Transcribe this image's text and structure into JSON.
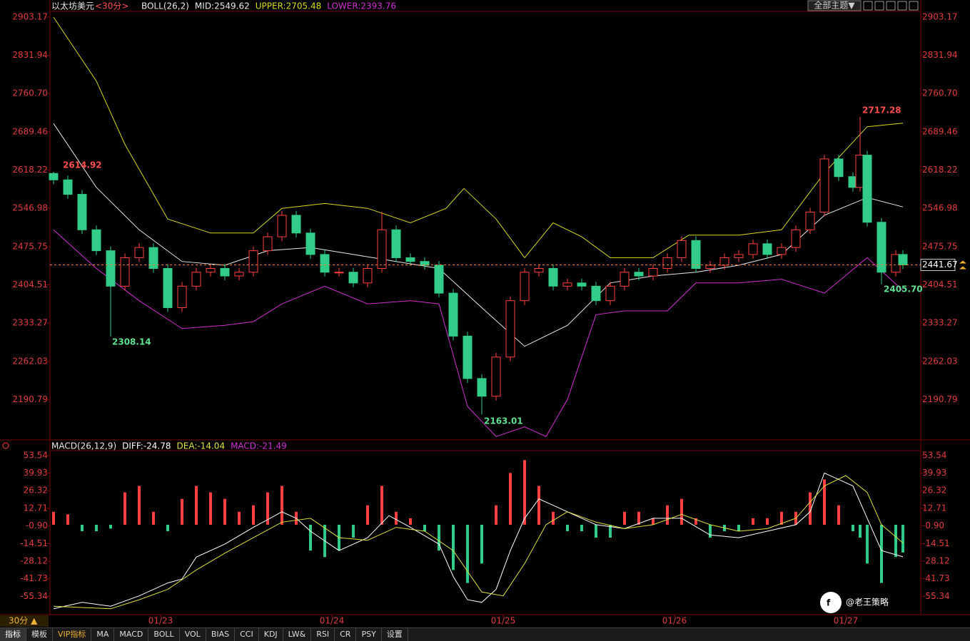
{
  "header": {
    "symbol": "以太坊美元",
    "period": "<30分>",
    "top_button": "全部主题▼"
  },
  "chart_data": [
    {
      "type": "candlestick",
      "title": "BOLL(26,2)",
      "x": [
        -15,
        -13,
        -11,
        -9,
        -7,
        -5,
        -3,
        -1,
        1,
        3,
        5,
        7,
        9,
        11,
        13,
        15,
        17,
        19,
        21,
        23,
        25,
        27,
        29,
        31,
        33,
        35,
        37,
        39,
        41,
        43,
        45,
        47,
        49,
        51,
        53,
        55,
        57,
        59,
        61,
        63,
        65,
        67,
        69,
        71,
        73,
        75,
        77,
        79,
        81,
        83,
        85,
        87,
        89,
        91,
        93,
        95,
        97,
        98,
        99,
        101,
        103,
        104
      ],
      "open": [
        2612,
        2600,
        2573,
        2507,
        2468,
        2402,
        2455,
        2474,
        2435,
        2362,
        2402,
        2428,
        2435,
        2421,
        2428,
        2468,
        2494,
        2534,
        2501,
        2461,
        2428,
        2428,
        2408,
        2435,
        2507,
        2455,
        2448,
        2441,
        2389,
        2309,
        2230,
        2197,
        2270,
        2375,
        2428,
        2435,
        2402,
        2408,
        2402,
        2375,
        2402,
        2428,
        2421,
        2435,
        2455,
        2487,
        2435,
        2441,
        2455,
        2461,
        2481,
        2461,
        2474,
        2507,
        2540,
        2639,
        2606,
        2586,
        2646,
        2521,
        2428,
        2461
      ],
      "high": [
        2614.92,
        2608,
        2581,
        2515,
        2476,
        2463,
        2482,
        2482,
        2443,
        2410,
        2436,
        2443,
        2443,
        2436,
        2476,
        2502,
        2542,
        2542,
        2509,
        2469,
        2436,
        2436,
        2443,
        2540,
        2515,
        2463,
        2456,
        2449,
        2397,
        2317,
        2238,
        2278,
        2383,
        2436,
        2443,
        2443,
        2416,
        2416,
        2410,
        2410,
        2436,
        2436,
        2443,
        2463,
        2495,
        2495,
        2449,
        2463,
        2469,
        2489,
        2489,
        2482,
        2515,
        2548,
        2647,
        2647,
        2614,
        2717.28,
        2654,
        2529,
        2469,
        2469
      ],
      "low": [
        2592,
        2565,
        2499,
        2460,
        2308.14,
        2394,
        2447,
        2427,
        2354,
        2354,
        2394,
        2420,
        2413,
        2413,
        2420,
        2460,
        2486,
        2493,
        2453,
        2420,
        2420,
        2400,
        2400,
        2427,
        2447,
        2440,
        2433,
        2381,
        2301,
        2222,
        2163.01,
        2189,
        2262,
        2367,
        2420,
        2394,
        2394,
        2394,
        2367,
        2367,
        2394,
        2413,
        2413,
        2427,
        2447,
        2427,
        2427,
        2433,
        2447,
        2453,
        2453,
        2453,
        2466,
        2499,
        2532,
        2598,
        2578,
        2578,
        2513,
        2405.7,
        2420,
        2434
      ],
      "close": [
        2600,
        2573,
        2507,
        2468,
        2402,
        2455,
        2474,
        2435,
        2362,
        2402,
        2428,
        2435,
        2421,
        2428,
        2468,
        2494,
        2534,
        2501,
        2461,
        2428,
        2428,
        2408,
        2435,
        2507,
        2455,
        2448,
        2441,
        2389,
        2309,
        2230,
        2197,
        2270,
        2375,
        2428,
        2435,
        2402,
        2408,
        2402,
        2375,
        2402,
        2428,
        2421,
        2435,
        2455,
        2487,
        2435,
        2441,
        2455,
        2461,
        2481,
        2461,
        2474,
        2507,
        2540,
        2639,
        2606,
        2586,
        2646,
        2521,
        2428,
        2461,
        2441.67
      ],
      "up_color": "#ff4040",
      "down_color": "#30cc88",
      "series": [
        {
          "name": "MID:2549.62",
          "color": "#e8e8e8",
          "x": [
            -15,
            -9,
            -3,
            3,
            9,
            15,
            21,
            27,
            33,
            39,
            45,
            51,
            57,
            63,
            69,
            75,
            81,
            87,
            93,
            99,
            104
          ],
          "values": [
            2705,
            2586,
            2507,
            2448,
            2441,
            2468,
            2474,
            2461,
            2448,
            2435,
            2362,
            2290,
            2329,
            2408,
            2421,
            2428,
            2441,
            2461,
            2534,
            2567,
            2549.62
          ]
        },
        {
          "name": "UPPER:2705.48",
          "color": "#d8d820",
          "x": [
            -15,
            -9,
            -5,
            1,
            7,
            13,
            17,
            23,
            29,
            35,
            40,
            42.5,
            47,
            51,
            55,
            59,
            63,
            69,
            74,
            81,
            87,
            93,
            99,
            104
          ],
          "values": [
            2903,
            2784,
            2666,
            2527,
            2501,
            2501,
            2547,
            2556,
            2547,
            2520,
            2547,
            2584,
            2527,
            2455,
            2520,
            2494,
            2455,
            2455,
            2497,
            2497,
            2507,
            2613,
            2699,
            2705.48
          ]
        },
        {
          "name": "LOWER:2393.76",
          "color": "#d030d0",
          "x": [
            -15,
            -9,
            -3,
            3,
            9,
            13,
            17,
            23,
            29,
            35,
            39,
            43,
            47,
            51,
            54,
            57,
            61,
            65,
            71,
            75,
            81,
            87,
            93,
            99,
            104
          ],
          "values": [
            2507,
            2435,
            2375,
            2323,
            2329,
            2336,
            2369,
            2402,
            2369,
            2375,
            2369,
            2178,
            2122,
            2140,
            2122,
            2191,
            2349,
            2356,
            2356,
            2408,
            2408,
            2415,
            2389,
            2455,
            2393.76
          ]
        }
      ],
      "annotations": [
        "2614.92",
        "2717.28",
        "2308.14",
        "2163.01",
        "2405.70"
      ],
      "xlim": [
        -15.5,
        106.5
      ],
      "ylim": [
        2118.3,
        2913.7
      ],
      "yticks": [
        2903.17,
        2831.94,
        {
          "value": 2760.7,
          "label": "2760.70"
        },
        2689.46,
        2618.22,
        2546.98,
        2475.75,
        2404.51,
        2333.27,
        2262.03,
        2190.79
      ]
    },
    {
      "type": "macd",
      "title": "MACD(26,12,9)",
      "value_name": "MACD:-21.49",
      "value_name_color": "#d030d0",
      "x": [
        -15,
        -13,
        -11,
        -9,
        -7,
        -5,
        -3,
        -1,
        1,
        3,
        5,
        7,
        9,
        11,
        13,
        15,
        17,
        19,
        21,
        23,
        25,
        27,
        29,
        31,
        33,
        35,
        37,
        39,
        41,
        43,
        45,
        47,
        49,
        51,
        53,
        55,
        57,
        59,
        61,
        63,
        65,
        67,
        69,
        71,
        73,
        75,
        77,
        79,
        81,
        83,
        85,
        87,
        89,
        91,
        93,
        95,
        97,
        98,
        99,
        101,
        103,
        104
      ],
      "values": [
        10,
        8,
        -5,
        -5,
        -3,
        25,
        30,
        10,
        -5,
        20,
        30,
        25,
        20,
        10,
        15,
        25,
        30,
        10,
        -20,
        -25,
        -20,
        -10,
        15,
        30,
        10,
        5,
        -5,
        -20,
        -35,
        -45,
        -30,
        15,
        40,
        50,
        30,
        10,
        -5,
        -5,
        -10,
        -10,
        10,
        10,
        5,
        15,
        20,
        5,
        -10,
        -5,
        -5,
        5,
        5,
        10,
        10,
        25,
        35,
        15,
        -5,
        -10,
        -30,
        -45,
        -25,
        -21.49
      ],
      "up_color": "#ff4040",
      "down_color": "#30cc88",
      "series": [
        {
          "name": "DIFF:-24.78",
          "color": "#ffffff",
          "x": [
            -15,
            -11,
            -7,
            -3,
            1,
            3,
            5,
            9,
            13,
            17,
            19,
            21,
            25,
            29,
            32,
            35,
            39,
            41,
            43,
            45,
            47,
            49,
            51,
            53,
            55,
            57,
            61,
            65,
            69,
            73,
            77,
            81,
            85,
            89,
            91,
            93,
            95,
            97,
            99,
            101,
            104
          ],
          "values": [
            -65,
            -60,
            -63,
            -55,
            -45,
            -42,
            -25,
            -15,
            -2,
            10,
            5,
            -5,
            -20,
            -10,
            7,
            -2,
            -15,
            -40,
            -58,
            -60,
            -50,
            -20,
            5,
            20,
            15,
            10,
            0,
            -3,
            5,
            5,
            -8,
            -10,
            -5,
            0,
            10,
            40,
            35,
            30,
            5,
            -20,
            -24.78
          ]
        },
        {
          "name": "DEA:-14.04",
          "color": "#e0e040",
          "x": [
            -15,
            -7,
            -3,
            1,
            5,
            9,
            13,
            17,
            21,
            25,
            29,
            33,
            37,
            41,
            45,
            48,
            51,
            54,
            57,
            61,
            65,
            69,
            73,
            77,
            81,
            85,
            89,
            93,
            96,
            99,
            101,
            104
          ],
          "values": [
            -63,
            -65,
            -58,
            -50,
            -35,
            -22,
            -10,
            2,
            5,
            -10,
            -12,
            -2,
            -5,
            -20,
            -52,
            -55,
            -30,
            0,
            10,
            2,
            -3,
            0,
            8,
            0,
            -5,
            -3,
            5,
            30,
            38,
            25,
            0,
            -14.04
          ]
        }
      ],
      "xlim": [
        -15.5,
        106.5
      ],
      "ylim": [
        -69.5,
        57.3
      ],
      "yticks": [
        53.54,
        39.93,
        26.32,
        12.71,
        {
          "value": -0.9,
          "label": "-0.90"
        },
        -14.51,
        -28.12,
        -41.73,
        -55.34
      ],
      "xticks": [
        {
          "value": 0,
          "label": "01/23"
        },
        {
          "value": 24,
          "label": "01/24"
        },
        {
          "value": 48,
          "label": "01/25"
        },
        {
          "value": 72,
          "label": "01/26"
        },
        {
          "value": 96,
          "label": "01/27"
        }
      ]
    }
  ],
  "footer": {
    "period_button": "30分 ▲",
    "tabs": [
      "指标",
      "模板",
      "VIP指标",
      "MA",
      "MACD",
      "BOLL",
      "VOL",
      "BIAS",
      "CCI",
      "KDJ",
      "LW&",
      "RSI",
      "CR",
      "PSY",
      "设置"
    ],
    "watermark": "@老王策略"
  }
}
